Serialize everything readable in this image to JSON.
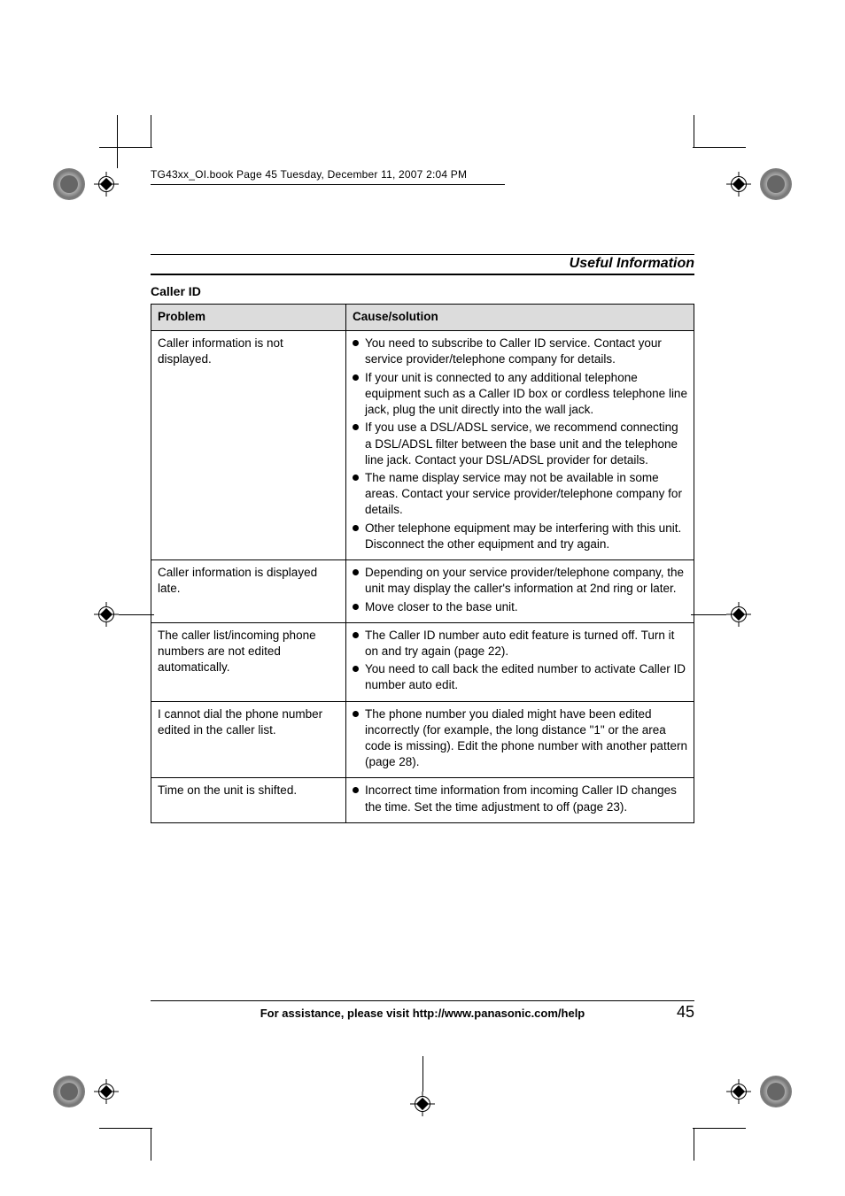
{
  "header_line": "TG43xx_OI.book  Page 45  Tuesday, December 11, 2007  2:04 PM",
  "running_head": "Useful Information",
  "section_title": "Caller ID",
  "table": {
    "headers": [
      "Problem",
      "Cause/solution"
    ],
    "rows": [
      {
        "problem": "Caller information is not displayed.",
        "solutions": [
          "You need to subscribe to Caller ID service. Contact your service provider/telephone company for details.",
          "If your unit is connected to any additional telephone equipment such as a Caller ID box or cordless telephone line jack, plug the unit directly into the wall jack.",
          "If you use a DSL/ADSL service, we recommend connecting a DSL/ADSL filter between the base unit and the telephone line jack. Contact your DSL/ADSL provider for details.",
          "The name display service may not be available in some areas. Contact your service provider/telephone company for details.",
          "Other telephone equipment may be interfering with this unit. Disconnect the other equipment and try again."
        ]
      },
      {
        "problem": "Caller information is displayed late.",
        "solutions": [
          "Depending on your service provider/telephone company, the unit may display the caller's information at 2nd ring or later.",
          "Move closer to the base unit."
        ]
      },
      {
        "problem": "The caller list/incoming phone numbers are not edited automatically.",
        "solutions": [
          "The Caller ID number auto edit feature is turned off. Turn it on and try again (page 22).",
          "You need to call back the edited number to activate Caller ID number auto edit."
        ]
      },
      {
        "problem": "I cannot dial the phone number edited in the caller list.",
        "solutions": [
          "The phone number you dialed might have been edited incorrectly (for example, the long distance \"1\" or the area code is missing). Edit the phone number with another pattern (page 28)."
        ]
      },
      {
        "problem": "Time on the unit is shifted.",
        "solutions": [
          "Incorrect time information from incoming Caller ID changes the time. Set the time adjustment to off (page 23)."
        ]
      }
    ]
  },
  "footer_text": "For assistance, please visit http://www.panasonic.com/help",
  "page_number": "45"
}
